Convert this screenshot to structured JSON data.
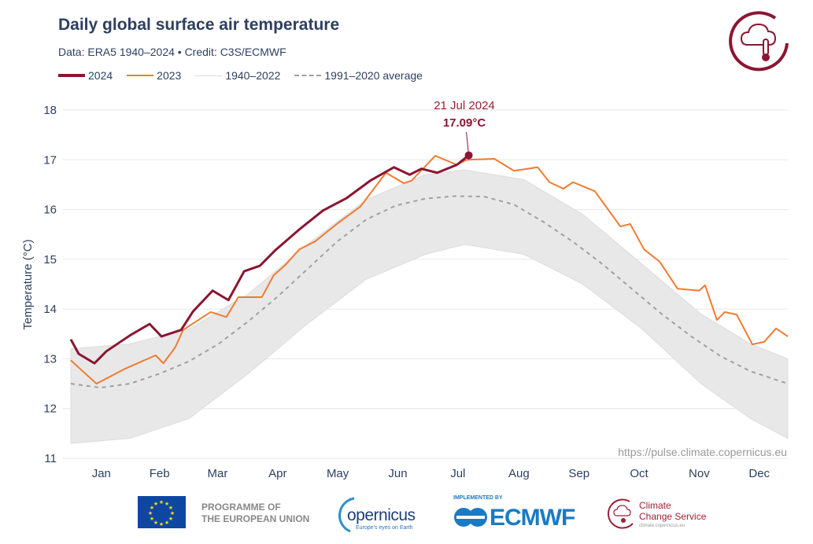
{
  "header": {
    "title": "Daily global surface air temperature",
    "subtitle": "Data: ERA5 1940–2024  •  Credit: C3S/ECMWF"
  },
  "legend": [
    {
      "label": "2024",
      "color": "#8b1532",
      "style": "solid-thick"
    },
    {
      "label": "2023",
      "color": "#f07b32",
      "style": "solid"
    },
    {
      "label": "1940–2022",
      "color": "#e3e3e3",
      "style": "solid"
    },
    {
      "label": "1991–2020 average",
      "color": "#a0a0a0",
      "style": "dashed"
    }
  ],
  "annotation": {
    "date": "21 Jul 2024",
    "value": "17.09°C"
  },
  "watermark": "https://pulse.climate.copernicus.eu",
  "footer": {
    "eu_line1": "PROGRAMME OF",
    "eu_line2": "THE EUROPEAN UNION",
    "copernicus": "opernicus",
    "copernicus_tagline": "Europe's eyes on Earth",
    "ecmwf_implemented": "IMPLEMENTED BY",
    "ecmwf": "ECMWF",
    "c3s_line1": "Climate",
    "c3s_line2": "Change Service",
    "c3s_url": "climate.copernicus.eu"
  },
  "chart_data": {
    "type": "line",
    "title": "Daily global surface air temperature",
    "xlabel": "",
    "ylabel": "Temperature (°C)",
    "ylim": [
      11,
      18
    ],
    "yticks": [
      "11",
      "12",
      "13",
      "14",
      "15",
      "16",
      "17",
      "18"
    ],
    "xticks": [
      "Jan",
      "Feb",
      "Mar",
      "Apr",
      "May",
      "Jun",
      "Jul",
      "Aug",
      "Sep",
      "Oct",
      "Nov",
      "Dec"
    ],
    "x_unit": "day of year",
    "grid": true,
    "legend_position": "top-left",
    "series": [
      {
        "name": "2024",
        "color": "#8b1532",
        "x": [
          0,
          4,
          12,
          18,
          30,
          40,
          46,
          56,
          62,
          72,
          80,
          88,
          96,
          104,
          116,
          128,
          140,
          152,
          164,
          172,
          178,
          186,
          196,
          202
        ],
        "y": [
          13.39,
          13.1,
          12.91,
          13.15,
          13.47,
          13.7,
          13.45,
          13.58,
          13.95,
          14.37,
          14.18,
          14.76,
          14.87,
          15.19,
          15.6,
          15.98,
          16.23,
          16.58,
          16.85,
          16.7,
          16.82,
          16.74,
          16.9,
          17.09
        ]
      },
      {
        "name": "2023",
        "color": "#f07b32",
        "x": [
          0,
          13,
          27,
          43,
          47,
          53,
          57,
          71,
          79,
          85,
          97,
          103,
          109,
          116,
          124,
          136,
          147,
          160,
          169,
          173,
          185,
          196,
          201,
          215,
          225,
          237,
          243,
          250,
          255,
          266,
          279,
          284,
          291,
          299,
          308,
          319,
          322,
          328,
          332,
          338,
          346,
          352,
          358,
          364
        ],
        "y": [
          12.97,
          12.5,
          12.79,
          13.07,
          12.91,
          13.23,
          13.58,
          13.94,
          13.84,
          14.24,
          14.24,
          14.68,
          14.89,
          15.2,
          15.36,
          15.74,
          16.06,
          16.74,
          16.53,
          16.58,
          17.08,
          16.9,
          17.0,
          17.02,
          16.78,
          16.85,
          16.55,
          16.42,
          16.55,
          16.37,
          15.66,
          15.71,
          15.2,
          14.95,
          14.41,
          14.37,
          14.48,
          13.78,
          13.94,
          13.89,
          13.29,
          13.34,
          13.61,
          13.45
        ]
      },
      {
        "name": "1991–2020 average",
        "color": "#a0a0a0",
        "dashed": true,
        "x": [
          0,
          15,
          30,
          45,
          60,
          75,
          90,
          105,
          120,
          135,
          150,
          165,
          180,
          195,
          210,
          225,
          240,
          255,
          270,
          285,
          300,
          315,
          330,
          345,
          364
        ],
        "y": [
          12.5,
          12.42,
          12.5,
          12.7,
          12.95,
          13.3,
          13.75,
          14.25,
          14.8,
          15.35,
          15.8,
          16.08,
          16.22,
          16.27,
          16.26,
          16.1,
          15.75,
          15.35,
          14.9,
          14.4,
          13.9,
          13.45,
          13.05,
          12.75,
          12.5
        ]
      }
    ],
    "range_1940_2022": {
      "name": "1940–2022",
      "x": [
        0,
        30,
        60,
        90,
        120,
        150,
        180,
        200,
        230,
        260,
        290,
        320,
        345,
        364
      ],
      "min": [
        11.3,
        11.4,
        11.8,
        12.7,
        13.7,
        14.6,
        15.1,
        15.3,
        15.1,
        14.5,
        13.6,
        12.5,
        11.8,
        11.4
      ],
      "max": [
        13.2,
        13.3,
        13.6,
        14.3,
        15.3,
        16.2,
        16.7,
        16.8,
        16.6,
        15.9,
        14.9,
        13.9,
        13.3,
        13.0
      ]
    }
  }
}
